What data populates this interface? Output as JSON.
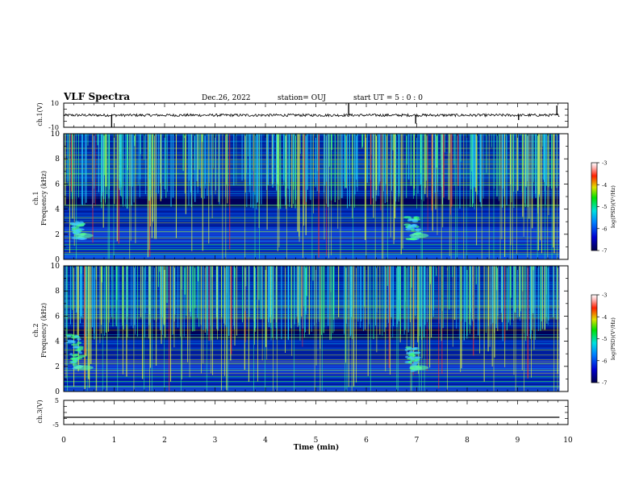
{
  "header": {
    "title": "VLF Spectra",
    "date": "Dec.26, 2022",
    "station": "station= OUJ",
    "start": "start  UT =   5 : 0  : 0"
  },
  "chart_data": [
    {
      "type": "line",
      "name": "ch1-waveform",
      "ylabel": "ch.1(V)",
      "ylim": [
        -10,
        10
      ],
      "ytick_labels": [
        "10",
        "-10"
      ],
      "baseline": 0,
      "x_range": [
        0,
        9.83
      ],
      "spikes": [
        {
          "x": 0.95,
          "y": -10
        },
        {
          "x": 5.65,
          "y": 10
        },
        {
          "x": 6.98,
          "y": -7
        },
        {
          "x": 9.02,
          "y": -4
        },
        {
          "x": 9.78,
          "y": 8
        }
      ]
    },
    {
      "type": "heatmap",
      "name": "ch1-spectrogram",
      "ylabel": "ch.1\nFrequency (kHz)",
      "xlim": [
        0,
        10
      ],
      "ylim": [
        0,
        10
      ],
      "yticks": [
        0,
        2,
        4,
        6,
        8,
        10
      ],
      "colorbar": {
        "label": "log(PSD)(V²/Hz)",
        "range": [
          -7,
          -3
        ],
        "ticks": [
          -3,
          -4,
          -5,
          -6,
          -7
        ]
      },
      "features": [
        {
          "kind": "chorus",
          "x": 0.3,
          "f_low": 1.6,
          "f_high": 3.0
        },
        {
          "kind": "chorus",
          "x": 6.95,
          "f_low": 1.6,
          "f_high": 3.4
        }
      ]
    },
    {
      "type": "heatmap",
      "name": "ch2-spectrogram",
      "ylabel": "ch.2\nFrequency (kHz)",
      "xlim": [
        0,
        10
      ],
      "ylim": [
        0,
        10
      ],
      "yticks": [
        0,
        2,
        4,
        6,
        8,
        10
      ],
      "colorbar": {
        "label": "log(PSD)(V²/Hz)",
        "range": [
          -7,
          -3
        ],
        "ticks": [
          -3,
          -4,
          -5,
          -6,
          -7
        ]
      },
      "features": [
        {
          "kind": "chorus",
          "x": 0.3,
          "f_low": 1.6,
          "f_high": 4.5
        },
        {
          "kind": "chorus",
          "x": 6.95,
          "f_low": 1.6,
          "f_high": 3.5
        }
      ]
    },
    {
      "type": "line",
      "name": "ch3-waveform",
      "ylabel": "ch.3(V)",
      "ylim": [
        -5,
        5
      ],
      "ytick_labels": [
        "5",
        "-5"
      ],
      "baseline": -2,
      "x_range": [
        0,
        9.83
      ]
    }
  ],
  "x_axis": {
    "label": "Time (min)",
    "range": [
      0,
      10
    ],
    "ticks": [
      "0",
      "1",
      "2",
      "3",
      "4",
      "5",
      "6",
      "7",
      "8",
      "9",
      "10"
    ]
  }
}
